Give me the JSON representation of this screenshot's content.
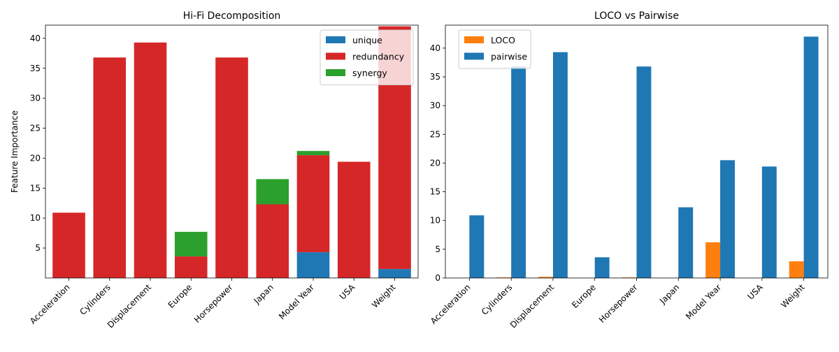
{
  "chart_data": [
    {
      "type": "bar",
      "stacked": true,
      "title": "Hi-Fi Decomposition",
      "xlabel": "",
      "ylabel": "Feature Importance",
      "ylim": [
        0,
        42.2
      ],
      "yticks": [
        5,
        10,
        15,
        20,
        25,
        30,
        35,
        40
      ],
      "categories": [
        "Acceleration",
        "Cylinders",
        "Displacement",
        "Europe",
        "Horsepower",
        "Japan",
        "Model Year",
        "USA",
        "Weight"
      ],
      "series": [
        {
          "name": "unique",
          "color": "#1f77b4",
          "values": [
            0,
            0,
            0,
            0,
            0,
            0,
            4.3,
            0,
            1.5
          ]
        },
        {
          "name": "redundancy",
          "color": "#d62728",
          "values": [
            10.9,
            36.8,
            39.3,
            3.6,
            36.8,
            12.3,
            16.2,
            19.4,
            40.5
          ]
        },
        {
          "name": "synergy",
          "color": "#2ca02c",
          "values": [
            0,
            0,
            0,
            4.1,
            0,
            4.2,
            0.7,
            0,
            0
          ]
        }
      ],
      "legend": "top-right",
      "grid": false
    },
    {
      "type": "bar",
      "grouped": true,
      "title": "LOCO vs Pairwise",
      "xlabel": "",
      "ylabel": "",
      "ylim": [
        0,
        44
      ],
      "yticks": [
        0,
        5,
        10,
        15,
        20,
        25,
        30,
        35,
        40
      ],
      "categories": [
        "Acceleration",
        "Cylinders",
        "Displacement",
        "Europe",
        "Horsepower",
        "Japan",
        "Model Year",
        "USA",
        "Weight"
      ],
      "series": [
        {
          "name": "LOCO",
          "color": "#ff7f0e",
          "values": [
            0,
            0.1,
            0.2,
            0,
            0.1,
            0,
            6.2,
            0,
            2.9
          ]
        },
        {
          "name": "pairwise",
          "color": "#1f77b4",
          "values": [
            10.9,
            36.8,
            39.3,
            3.6,
            36.8,
            12.3,
            20.5,
            19.4,
            42.0
          ]
        }
      ],
      "legend": "top-left",
      "grid": false
    }
  ]
}
